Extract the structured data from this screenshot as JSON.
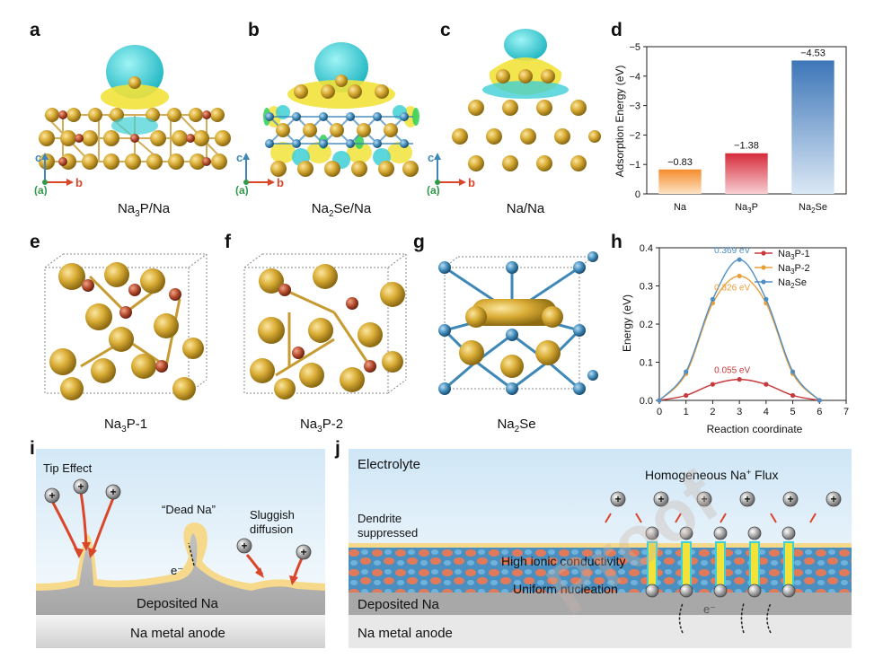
{
  "panels": {
    "a": {
      "letter": "a",
      "caption": [
        "Na",
        "3",
        "P/Na"
      ]
    },
    "b": {
      "letter": "b",
      "caption": [
        "Na",
        "2",
        "Se/Na"
      ]
    },
    "c": {
      "letter": "c",
      "caption": [
        "Na/Na"
      ]
    },
    "d": {
      "letter": "d"
    },
    "e": {
      "letter": "e",
      "caption": [
        "Na",
        "3",
        "P-1"
      ]
    },
    "f": {
      "letter": "f",
      "caption": [
        "Na",
        "3",
        "P-2"
      ]
    },
    "g": {
      "letter": "g",
      "caption": [
        "Na",
        "2",
        "Se"
      ]
    },
    "h": {
      "letter": "h"
    },
    "i": {
      "letter": "i"
    },
    "j": {
      "letter": "j"
    }
  },
  "axes_labels": {
    "c": "c",
    "a": "(a)",
    "b": "b"
  },
  "colors": {
    "na_atom": "#d4a62a",
    "p_atom": "#b2482a",
    "se_atom": "#3e88b8",
    "iso_cyan": "#3fd0d6",
    "iso_yellow": "#f2e23a",
    "line_na3p1": "#c8393b",
    "line_na3p2": "#e9a03b",
    "line_na2se": "#4f8fc6"
  },
  "chart_data": [
    {
      "type": "bar",
      "panel": "d",
      "categories": [
        "Na",
        "Na3P",
        "Na2Se"
      ],
      "category_labels": [
        [
          "Na",
          "",
          ""
        ],
        [
          "Na",
          "3",
          "P"
        ],
        [
          "Na",
          "2",
          "Se"
        ]
      ],
      "values": [
        -0.83,
        -1.38,
        -4.53
      ],
      "value_labels": [
        "−0.83",
        "−1.38",
        "−4.53"
      ],
      "ylabel": "Adsorption Energy (eV)",
      "ylim": [
        0,
        -5
      ],
      "yticks": [
        "0",
        "−1",
        "−2",
        "−3",
        "−4",
        "−5"
      ],
      "colors": [
        "#f7a24a",
        "#d93a45",
        "#4f86c4"
      ],
      "axis_inverted": true
    },
    {
      "type": "line",
      "panel": "h",
      "xlabel": "Reaction coordinate",
      "ylabel": "Energy (eV)",
      "xlim": [
        0,
        7
      ],
      "ylim": [
        0,
        0.4
      ],
      "xticks": [
        "0",
        "1",
        "2",
        "3",
        "4",
        "5",
        "6",
        "7"
      ],
      "yticks": [
        "0.0",
        "0.1",
        "0.2",
        "0.3",
        "0.4"
      ],
      "legend_position": "top-right",
      "series": [
        {
          "name": "Na3P-1",
          "legend": [
            "Na",
            "3",
            "P-1"
          ],
          "color": "#c8393b",
          "x": [
            0,
            1,
            2,
            3,
            4,
            5,
            6
          ],
          "y": [
            0.0,
            0.013,
            0.042,
            0.055,
            0.042,
            0.013,
            0.0
          ]
        },
        {
          "name": "Na3P-2",
          "legend": [
            "Na",
            "3",
            "P-2"
          ],
          "color": "#e9a03b",
          "x": [
            0,
            1,
            2,
            3,
            4,
            5,
            6
          ],
          "y": [
            0.0,
            0.07,
            0.255,
            0.326,
            0.255,
            0.07,
            0.0
          ]
        },
        {
          "name": "Na2Se",
          "legend": [
            "Na",
            "2",
            "Se"
          ],
          "color": "#4f8fc6",
          "x": [
            0,
            1,
            2,
            3,
            4,
            5,
            6
          ],
          "y": [
            0.0,
            0.075,
            0.265,
            0.369,
            0.265,
            0.075,
            0.0
          ]
        }
      ],
      "annotations": [
        {
          "text": "0.369 eV",
          "color": "#4f8fc6",
          "x": 3,
          "y": 0.369
        },
        {
          "text": "0.326 eV",
          "color": "#e9a03b",
          "x": 3,
          "y": 0.326
        },
        {
          "text": "0.055 eV",
          "color": "#c8393b",
          "x": 3,
          "y": 0.055
        }
      ]
    }
  ],
  "schematic_i": {
    "tip_effect": "Tip Effect",
    "dead_na": "“Dead Na”",
    "sluggish": [
      "Sluggish",
      "diffusion"
    ],
    "electron": "e⁻",
    "deposited": "Deposited Na",
    "anode": "Na metal anode"
  },
  "schematic_j": {
    "electrolyte": "Electrolyte",
    "flux": [
      "Homogeneous Na",
      "+",
      " Flux"
    ],
    "dendrite": [
      "Dendrite",
      "suppressed"
    ],
    "ionic": "High ionic conductivity",
    "nucleation": "Uniform nucleation",
    "deposited": "Deposited Na",
    "anode": "Na metal anode",
    "electron": "e⁻"
  },
  "watermark": "Proof"
}
